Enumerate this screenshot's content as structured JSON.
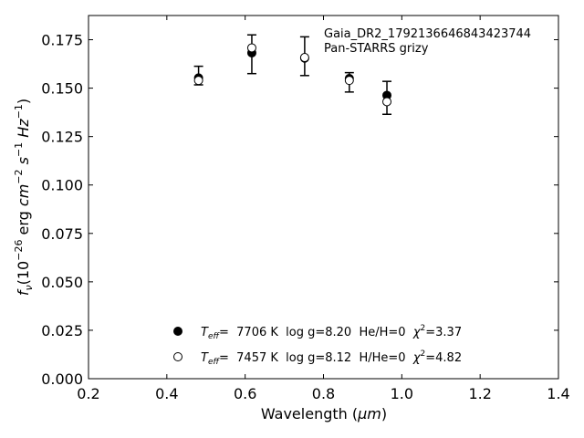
{
  "chart_data": {
    "type": "scatter",
    "title": "",
    "xlabel_main": "Wavelength (",
    "xlabel_unit": "μm",
    "xlabel_close": ")",
    "ylabel": {
      "symbol": "f",
      "symbol_sub": "ν",
      "open": "(10",
      "exp1": "−26",
      "mid": " erg ",
      "cm": "cm",
      "exp2": "−2",
      "s": "s",
      "exp3": "−1",
      "hz": "Hz",
      "exp4": "−1",
      "close": ")"
    },
    "xlim": [
      0.2,
      1.4
    ],
    "ylim": [
      0.0,
      0.1875
    ],
    "xticks": [
      "0.2",
      "0.4",
      "0.6",
      "0.8",
      "1.0",
      "1.2",
      "1.4"
    ],
    "yticks": [
      "0.000",
      "0.025",
      "0.050",
      "0.075",
      "0.100",
      "0.125",
      "0.150",
      "0.175"
    ],
    "grid": false,
    "annotation": [
      "Gaia_DR2_1792136646843423744",
      "Pan-STARRS grizy"
    ],
    "observed": {
      "x": [
        0.481,
        0.617,
        0.752,
        0.866,
        0.962
      ],
      "y": [
        0.1565,
        0.1675,
        0.1665,
        0.153,
        0.145
      ],
      "yerr": [
        0.0048,
        0.01,
        0.01,
        0.005,
        0.0085
      ]
    },
    "series": [
      {
        "marker": "filled-circle",
        "x": [
          0.481,
          0.617,
          0.752,
          0.866,
          0.962
        ],
        "y": [
          0.1553,
          0.1682,
          0.1655,
          0.155,
          0.1463
        ]
      },
      {
        "marker": "open-circle",
        "x": [
          0.481,
          0.617,
          0.752,
          0.866,
          0.962
        ],
        "y": [
          0.154,
          0.1708,
          0.1658,
          0.154,
          0.143
        ]
      }
    ],
    "legend": [
      {
        "marker": "filled-circle",
        "teff_sym": "T",
        "teff_sub": "eff",
        "text_a": "=  7706 K  log g=8.20  He/H=0  ",
        "chi": "χ",
        "chi_exp": "2",
        "text_b": "=3.37"
      },
      {
        "marker": "open-circle",
        "teff_sym": "T",
        "teff_sub": "eff",
        "text_a": "=  7457 K  log g=8.12  H/He=0  ",
        "chi": "χ",
        "chi_exp": "2",
        "text_b": "=4.82"
      }
    ],
    "legend_placement": "lower-center",
    "colors": {
      "marker": "#000000",
      "axes": "#000000",
      "background": "#ffffff"
    }
  }
}
